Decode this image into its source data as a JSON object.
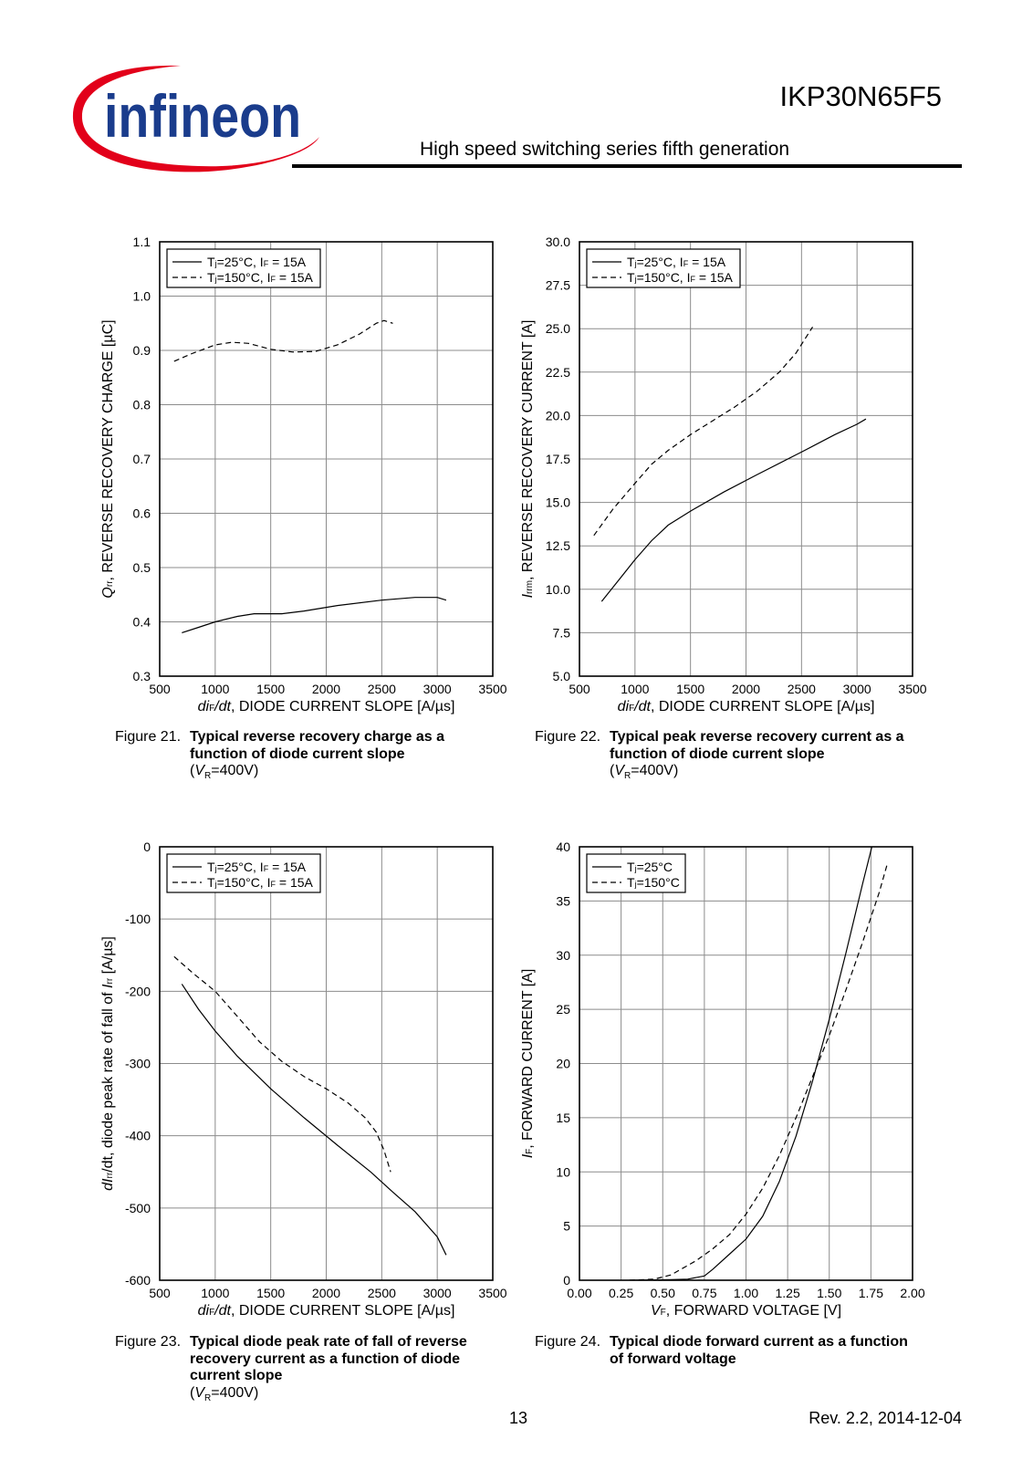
{
  "header": {
    "logo_text": "infineon",
    "part_number": "IKP30N65F5",
    "series_title": "High speed switching series fifth generation"
  },
  "footer": {
    "page_number": "13",
    "revision": "Rev. 2.2,  2014-12-04"
  },
  "captions": [
    {
      "number": "Figure 21.",
      "bold": "Typical reverse recovery charge as a function of diode current slope",
      "cond_var": "V",
      "cond_sub": "R",
      "cond_rest": "=400V)"
    },
    {
      "number": "Figure 22.",
      "bold": "Typical peak reverse recovery current as a function of diode current slope",
      "cond_var": "V",
      "cond_sub": "R",
      "cond_rest": "=400V)"
    },
    {
      "number": "Figure 23.",
      "bold": "Typical diode peak rate of fall of reverse recovery current as a function of diode current slope",
      "cond_var": "V",
      "cond_sub": "R",
      "cond_rest": "=400V)"
    },
    {
      "number": "Figure 24.",
      "bold": "Typical diode forward current as a function of forward voltage"
    }
  ],
  "chart_data": [
    {
      "type": "line",
      "xlim": [
        500,
        3500
      ],
      "ylim": [
        0.3,
        1.1
      ],
      "xticks": [
        "500",
        "1000",
        "1500",
        "2000",
        "2500",
        "3000",
        "3500"
      ],
      "yticks": [
        "0.3",
        "0.4",
        "0.5",
        "0.6",
        "0.7",
        "0.8",
        "0.9",
        "1.0",
        "1.1"
      ],
      "grid": true,
      "legend": "top-left",
      "xlabel": {
        "parts": [
          [
            "di",
            "i"
          ],
          [
            "F",
            "sub"
          ],
          [
            "/dt",
            "i"
          ],
          [
            ", DIODE CURRENT SLOPE [A/µs]",
            ""
          ]
        ]
      },
      "ylabel": {
        "parts": [
          [
            "Q",
            "i"
          ],
          [
            "rr",
            "sub"
          ],
          [
            ", REVERSE RECOVERY CHARGE [µC]",
            ""
          ]
        ]
      },
      "series": [
        {
          "name": "Tj=25°C, IF = 15A",
          "label_parts": [
            [
              "T",
              ""
            ],
            [
              "j",
              "sub"
            ],
            [
              "=25°C, I",
              ""
            ],
            [
              "F",
              "sub"
            ],
            [
              " = 15A",
              ""
            ]
          ],
          "dash": "solid",
          "x": [
            700,
            850,
            1000,
            1200,
            1350,
            1600,
            1800,
            2100,
            2500,
            2800,
            3000,
            3080
          ],
          "y": [
            0.38,
            0.39,
            0.4,
            0.41,
            0.415,
            0.415,
            0.42,
            0.43,
            0.44,
            0.445,
            0.445,
            0.44
          ]
        },
        {
          "name": "Tj=150°C, IF = 15A",
          "label_parts": [
            [
              "T",
              ""
            ],
            [
              "j",
              "sub"
            ],
            [
              "=150°C, I",
              ""
            ],
            [
              "F",
              "sub"
            ],
            [
              " = 15A",
              ""
            ]
          ],
          "dash": "dashed",
          "x": [
            630,
            800,
            1000,
            1150,
            1300,
            1500,
            1700,
            1900,
            2100,
            2300,
            2450,
            2520,
            2600
          ],
          "y": [
            0.88,
            0.895,
            0.91,
            0.915,
            0.913,
            0.902,
            0.897,
            0.898,
            0.91,
            0.93,
            0.95,
            0.955,
            0.95
          ]
        }
      ]
    },
    {
      "type": "line",
      "xlim": [
        500,
        3500
      ],
      "ylim": [
        5.0,
        30.0
      ],
      "xticks": [
        "500",
        "1000",
        "1500",
        "2000",
        "2500",
        "3000",
        "3500"
      ],
      "yticks": [
        "5.0",
        "7.5",
        "10.0",
        "12.5",
        "15.0",
        "17.5",
        "20.0",
        "22.5",
        "25.0",
        "27.5",
        "30.0"
      ],
      "grid": true,
      "legend": "top-left",
      "xlabel": {
        "parts": [
          [
            "di",
            "i"
          ],
          [
            "F",
            "sub"
          ],
          [
            "/dt",
            "i"
          ],
          [
            ", DIODE CURRENT SLOPE [A/µs]",
            ""
          ]
        ]
      },
      "ylabel": {
        "parts": [
          [
            "I",
            "i"
          ],
          [
            "rrm",
            "sub"
          ],
          [
            ", REVERSE RECOVERY CURRENT [A]",
            ""
          ]
        ]
      },
      "series": [
        {
          "name": "Tj=25°C, IF = 15A",
          "label_parts": [
            [
              "T",
              ""
            ],
            [
              "j",
              "sub"
            ],
            [
              "=25°C, I",
              ""
            ],
            [
              "F",
              "sub"
            ],
            [
              " = 15A",
              ""
            ]
          ],
          "dash": "solid",
          "x": [
            700,
            850,
            1000,
            1150,
            1300,
            1500,
            1800,
            2100,
            2500,
            2800,
            3000,
            3080
          ],
          "y": [
            9.3,
            10.5,
            11.7,
            12.8,
            13.7,
            14.5,
            15.6,
            16.6,
            17.9,
            18.9,
            19.5,
            19.8
          ]
        },
        {
          "name": "Tj=150°C, IF = 15A",
          "label_parts": [
            [
              "T",
              ""
            ],
            [
              "j",
              "sub"
            ],
            [
              "=150°C, I",
              ""
            ],
            [
              "F",
              "sub"
            ],
            [
              " = 15A",
              ""
            ]
          ],
          "dash": "dashed",
          "x": [
            630,
            800,
            1000,
            1150,
            1300,
            1500,
            1700,
            1900,
            2100,
            2300,
            2450,
            2600
          ],
          "y": [
            13.1,
            14.6,
            16.1,
            17.2,
            18.0,
            18.9,
            19.7,
            20.5,
            21.4,
            22.5,
            23.6,
            25.1
          ]
        }
      ]
    },
    {
      "type": "line",
      "xlim": [
        500,
        3500
      ],
      "ylim": [
        -600,
        0
      ],
      "xticks": [
        "500",
        "1000",
        "1500",
        "2000",
        "2500",
        "3000",
        "3500"
      ],
      "yticks": [
        "-600",
        "-500",
        "-400",
        "-300",
        "-200",
        "-100",
        "0"
      ],
      "grid": true,
      "legend": "top-left",
      "xlabel": {
        "parts": [
          [
            "di",
            "i"
          ],
          [
            "F",
            "sub"
          ],
          [
            "/dt",
            "i"
          ],
          [
            ", DIODE CURRENT SLOPE [A/µs]",
            ""
          ]
        ]
      },
      "ylabel": {
        "parts": [
          [
            "dI",
            "i"
          ],
          [
            "rr",
            "sub"
          ],
          [
            "/dt",
            ""
          ],
          [
            ", diode peak rate of fall of ",
            ""
          ],
          [
            "I",
            "i"
          ],
          [
            "rr",
            "sub"
          ],
          [
            " [A/µs]",
            ""
          ]
        ]
      },
      "series": [
        {
          "name": "Tj=25°C, IF = 15A",
          "label_parts": [
            [
              "T",
              ""
            ],
            [
              "j",
              "sub"
            ],
            [
              "=25°C, I",
              ""
            ],
            [
              "F",
              "sub"
            ],
            [
              " = 15A",
              ""
            ]
          ],
          "dash": "solid",
          "x": [
            700,
            850,
            1000,
            1200,
            1500,
            1800,
            2100,
            2400,
            2600,
            2800,
            3000,
            3080
          ],
          "y": [
            -190,
            -225,
            -255,
            -290,
            -335,
            -375,
            -413,
            -450,
            -478,
            -505,
            -540,
            -565
          ]
        },
        {
          "name": "Tj=150°C, IF = 15A",
          "label_parts": [
            [
              "T",
              ""
            ],
            [
              "j",
              "sub"
            ],
            [
              "=150°C, I",
              ""
            ],
            [
              "F",
              "sub"
            ],
            [
              " = 15A",
              ""
            ]
          ],
          "dash": "dashed",
          "x": [
            630,
            800,
            1000,
            1200,
            1400,
            1600,
            1800,
            2000,
            2200,
            2350,
            2450,
            2520,
            2580
          ],
          "y": [
            -152,
            -175,
            -200,
            -235,
            -270,
            -297,
            -318,
            -335,
            -355,
            -375,
            -395,
            -420,
            -450
          ]
        }
      ]
    },
    {
      "type": "line",
      "xlim": [
        0.0,
        2.0
      ],
      "ylim": [
        0,
        40
      ],
      "xticks": [
        "0.00",
        "0.25",
        "0.50",
        "0.75",
        "1.00",
        "1.25",
        "1.50",
        "1.75",
        "2.00"
      ],
      "yticks": [
        "0",
        "5",
        "10",
        "15",
        "20",
        "25",
        "30",
        "35",
        "40"
      ],
      "grid": true,
      "legend": "top-left",
      "xlabel": {
        "parts": [
          [
            "V",
            "i"
          ],
          [
            "F",
            "sub"
          ],
          [
            ", FORWARD VOLTAGE [V]",
            ""
          ]
        ]
      },
      "ylabel": {
        "parts": [
          [
            "I",
            "i"
          ],
          [
            "F",
            "sub"
          ],
          [
            ", FORWARD CURRENT [A]",
            ""
          ]
        ]
      },
      "series": [
        {
          "name": "Tj=25°C",
          "label_parts": [
            [
              "T",
              ""
            ],
            [
              "j",
              "sub"
            ],
            [
              "=25°C",
              ""
            ]
          ],
          "dash": "solid",
          "x": [
            0.3,
            0.55,
            0.65,
            0.75,
            0.8,
            0.9,
            1.0,
            1.1,
            1.2,
            1.3,
            1.4,
            1.5,
            1.6,
            1.7,
            1.78
          ],
          "y": [
            0,
            0.05,
            0.1,
            0.4,
            1.0,
            2.4,
            3.8,
            5.9,
            9.1,
            13.3,
            18.4,
            24.1,
            30.2,
            36.6,
            41.5
          ]
        },
        {
          "name": "Tj=150°C",
          "label_parts": [
            [
              "T",
              ""
            ],
            [
              "j",
              "sub"
            ],
            [
              "=150°C",
              ""
            ]
          ],
          "dash": "dashed",
          "x": [
            0.3,
            0.45,
            0.55,
            0.7,
            0.8,
            0.9,
            1.0,
            1.1,
            1.2,
            1.3,
            1.4,
            1.5,
            1.6,
            1.7,
            1.8,
            1.85
          ],
          "y": [
            0,
            0.1,
            0.5,
            1.8,
            2.9,
            4.2,
            6.1,
            8.5,
            11.5,
            15.0,
            18.8,
            22.6,
            26.8,
            31.2,
            35.8,
            38.5
          ]
        }
      ]
    }
  ]
}
